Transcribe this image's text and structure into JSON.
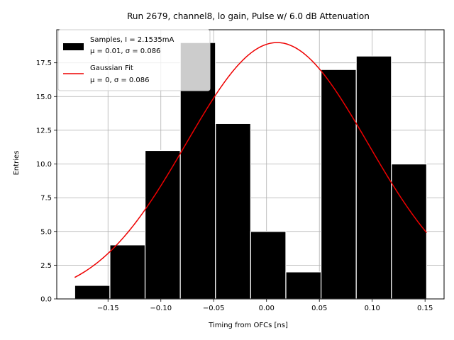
{
  "chart_data": {
    "type": "histogram",
    "title": "Run 2679, channel8, lo gain, Pulse w/ 6.0 dB Attenuation",
    "xlabel": "Timing from OFCs [ns]",
    "ylabel": "Entries",
    "xlim": [
      -0.1985,
      0.168
    ],
    "ylim": [
      0,
      19.95
    ],
    "x_ticks": [
      -0.15,
      -0.1,
      -0.05,
      0.0,
      0.05,
      0.1,
      0.15
    ],
    "x_tick_labels": [
      "−0.15",
      "−0.10",
      "−0.05",
      "0.00",
      "0.05",
      "0.10",
      "0.15"
    ],
    "y_ticks": [
      0.0,
      2.5,
      5.0,
      7.5,
      10.0,
      12.5,
      15.0,
      17.5
    ],
    "y_tick_labels": [
      "0.0",
      "2.5",
      "5.0",
      "7.5",
      "10.0",
      "12.5",
      "15.0",
      "17.5"
    ],
    "grid": true,
    "legend_position": "top-left",
    "series": [
      {
        "name": "Samples, I = 2.1535mA",
        "name_line2": "μ = 0.01, σ = 0.086",
        "kind": "bars",
        "color": "#000000",
        "edge_color": "#ffffff",
        "bin_edges": [
          -0.1815,
          -0.1482,
          -0.1149,
          -0.0816,
          -0.0483,
          -0.015,
          0.0183,
          0.0516,
          0.0849,
          0.1182,
          0.1515
        ],
        "counts": [
          1,
          4,
          11,
          19,
          13,
          5,
          2,
          17,
          18,
          10
        ]
      },
      {
        "name": "Gaussian Fit",
        "name_line2": "μ = 0, σ = 0.086",
        "kind": "line",
        "color": "#ee0000",
        "amplitude": 19,
        "mean": 0.01,
        "sigma": 0.086,
        "x_range": [
          -0.1815,
          0.1515
        ]
      }
    ]
  }
}
